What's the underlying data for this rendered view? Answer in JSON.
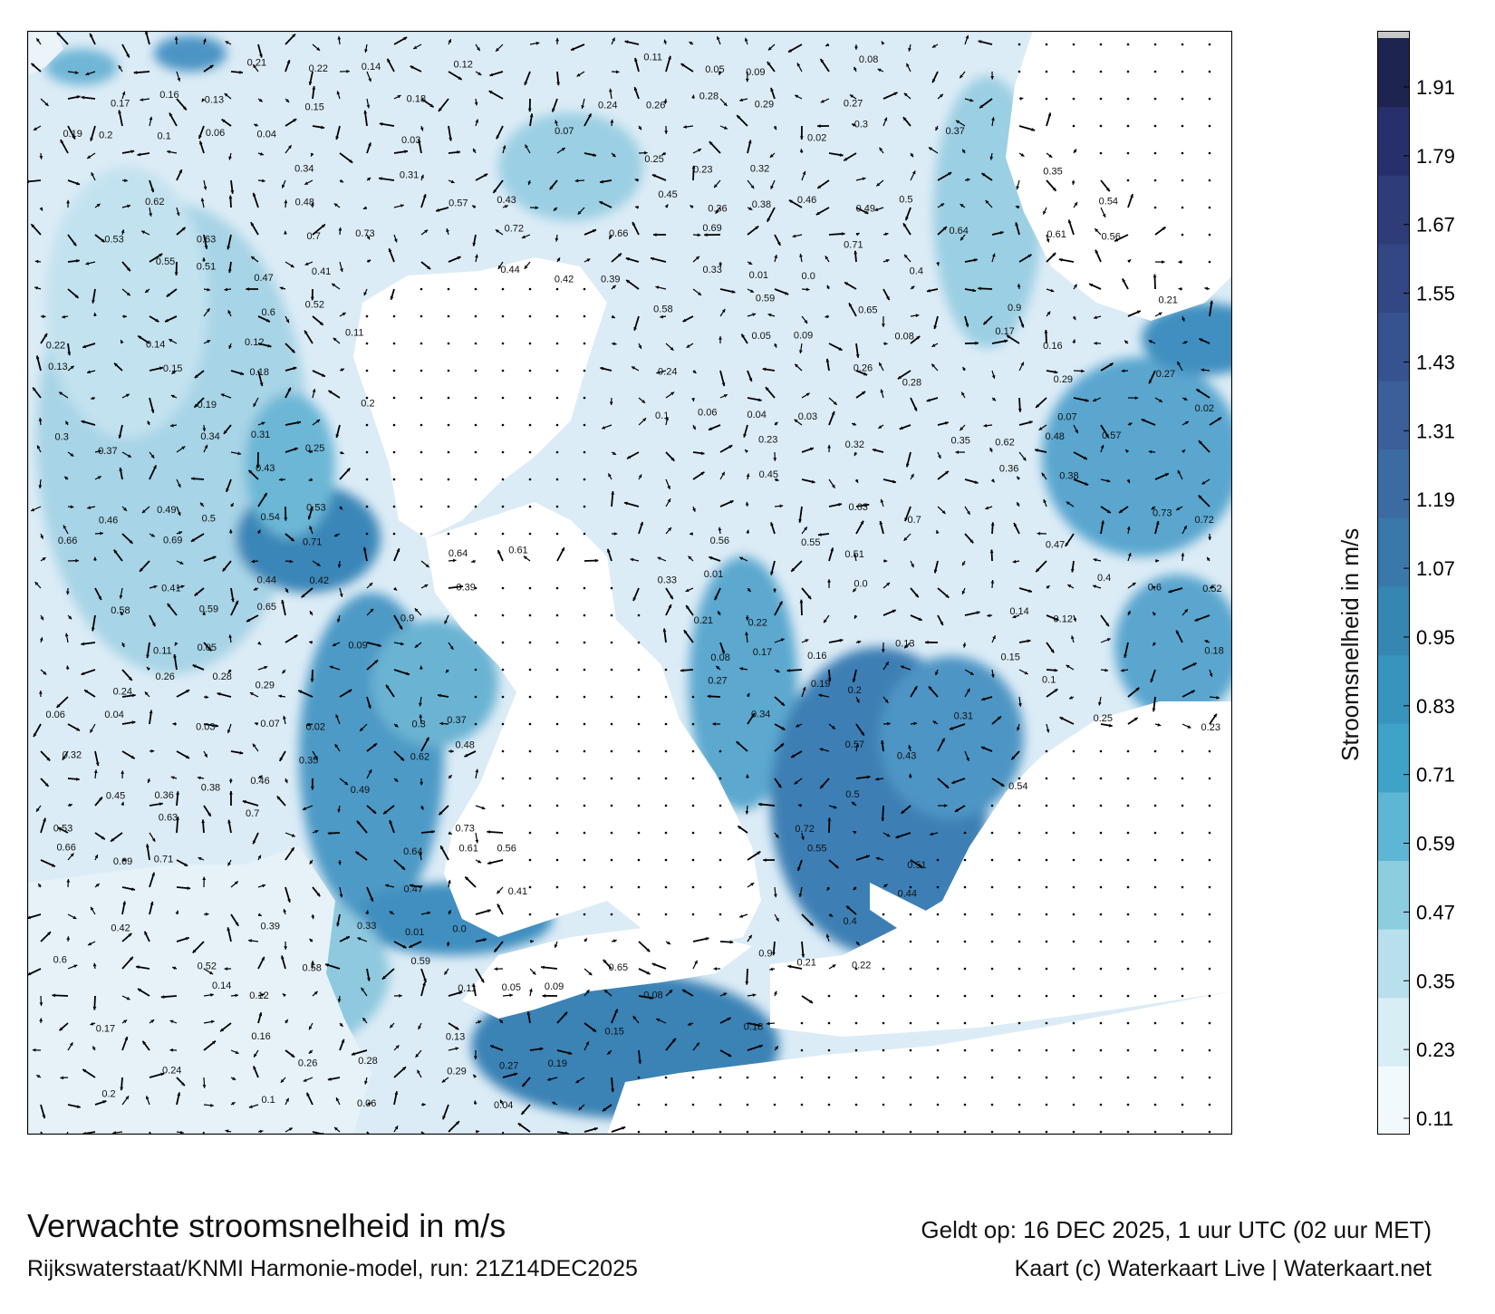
{
  "title": "Verwachte stroomsnelheid in m/s",
  "credit": "Rijkswaterstaat/KNMI Harmonie-model, run: 21Z14DEC2025",
  "valid_time": "Geldt op: 16 DEC 2025, 1 uur UTC (02 uur MET)",
  "copyright": "Kaart (c) Waterkaart Live | Waterkaart.net",
  "colorbar": {
    "label": "Stroomsnelheid in m/s",
    "ticks": [
      "1.91",
      "1.79",
      "1.67",
      "1.55",
      "1.43",
      "1.31",
      "1.19",
      "1.07",
      "0.95",
      "0.83",
      "0.71",
      "0.59",
      "0.47",
      "0.35",
      "0.23",
      "0.11"
    ],
    "colors": [
      "#f2f9fc",
      "#d8eef5",
      "#b8e0ec",
      "#8ccde0",
      "#5db6d3",
      "#3fa3c7",
      "#3795bd",
      "#3686b2",
      "#3a78aa",
      "#3c6ba2",
      "#3b5f99",
      "#37538f",
      "#334784",
      "#2e3c78",
      "#27306a",
      "#1d2450",
      "#c8c8c8"
    ]
  },
  "annotations": [
    {
      "v": "0.21"
    },
    {
      "v": "0.22"
    },
    {
      "v": "0.14"
    },
    {
      "v": "0.12"
    },
    {
      "v": "0.11"
    },
    {
      "v": "0.05"
    },
    {
      "v": "0.09"
    },
    {
      "v": "0.08"
    },
    {
      "v": "0.17"
    },
    {
      "v": "0.16"
    },
    {
      "v": "0.13"
    },
    {
      "v": "0.15"
    },
    {
      "v": "0.18"
    },
    {
      "v": "0.24"
    },
    {
      "v": "0.26"
    },
    {
      "v": "0.28"
    },
    {
      "v": "0.29"
    },
    {
      "v": "0.27"
    },
    {
      "v": "0.19"
    },
    {
      "v": "0.2"
    },
    {
      "v": "0.1"
    },
    {
      "v": "0.06"
    },
    {
      "v": "0.04"
    },
    {
      "v": "0.03"
    },
    {
      "v": "0.07"
    },
    {
      "v": "0.02"
    },
    {
      "v": "0.3"
    },
    {
      "v": "0.37"
    },
    {
      "v": "0.34"
    },
    {
      "v": "0.31"
    },
    {
      "v": "0.25"
    },
    {
      "v": "0.23"
    },
    {
      "v": "0.32"
    },
    {
      "v": "0.35"
    },
    {
      "v": "0.62"
    },
    {
      "v": "0.48"
    },
    {
      "v": "0.57"
    },
    {
      "v": "0.43"
    },
    {
      "v": "0.45"
    },
    {
      "v": "0.36"
    },
    {
      "v": "0.38"
    },
    {
      "v": "0.46"
    },
    {
      "v": "0.49"
    },
    {
      "v": "0.5"
    },
    {
      "v": "0.54"
    },
    {
      "v": "0.53"
    },
    {
      "v": "0.63"
    },
    {
      "v": "0.7"
    },
    {
      "v": "0.73"
    },
    {
      "v": "0.72"
    },
    {
      "v": "0.66"
    },
    {
      "v": "0.69"
    },
    {
      "v": "0.71"
    },
    {
      "v": "0.64"
    },
    {
      "v": "0.61"
    },
    {
      "v": "0.56"
    },
    {
      "v": "0.55"
    },
    {
      "v": "0.51"
    },
    {
      "v": "0.47"
    },
    {
      "v": "0.41"
    },
    {
      "v": "0.44"
    },
    {
      "v": "0.42"
    },
    {
      "v": "0.39"
    },
    {
      "v": "0.33"
    },
    {
      "v": "0.01"
    },
    {
      "v": "0.0"
    },
    {
      "v": "0.4"
    },
    {
      "v": "0.6"
    },
    {
      "v": "0.52"
    },
    {
      "v": "0.58"
    },
    {
      "v": "0.59"
    },
    {
      "v": "0.65"
    },
    {
      "v": "0.9"
    }
  ]
}
